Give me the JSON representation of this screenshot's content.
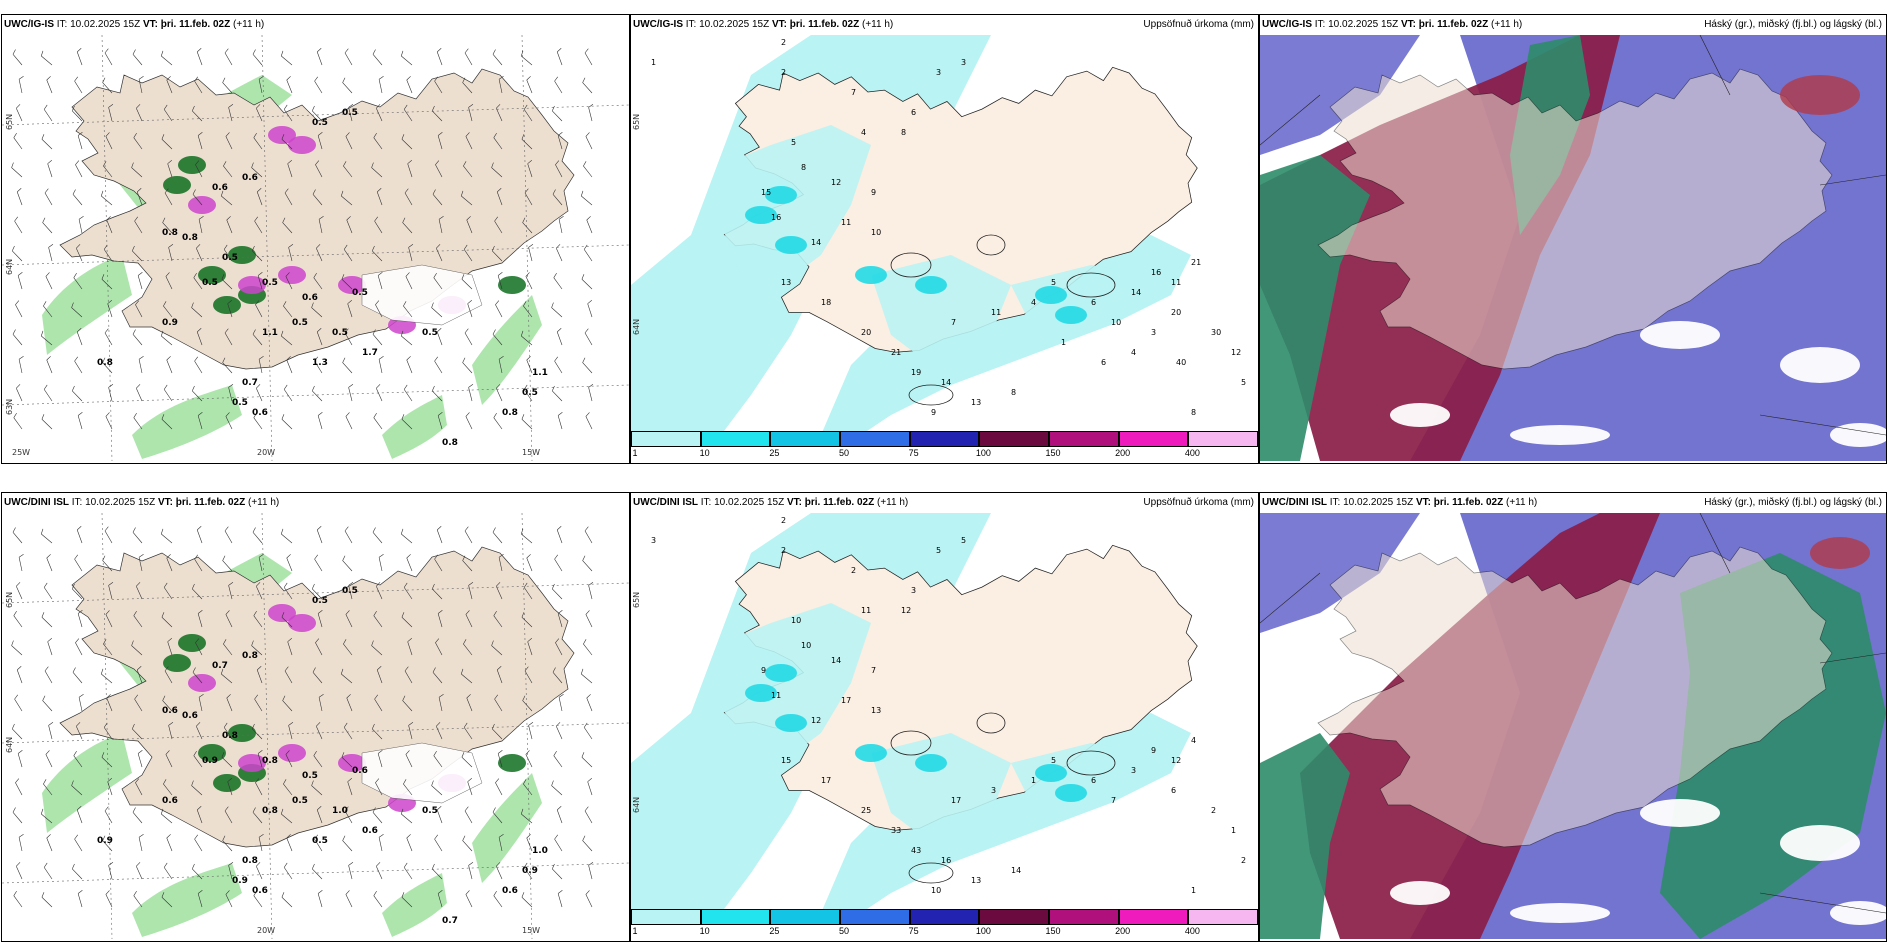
{
  "top": {
    "left": {
      "title_model": "UWC/IG-IS",
      "title_it_label": "IT:",
      "title_it": "10.02.2025 15Z",
      "title_vt_label": "VT:",
      "title_vt": "þri. 11.feb. 02Z",
      "title_lead": "(+11 h)",
      "lat_labels": [
        "65N",
        "64N",
        "63N"
      ],
      "lon_labels": [
        "20W",
        "15W",
        "25W"
      ],
      "values": [
        "0.5",
        "0.5",
        "0.6",
        "0.6",
        "0.8",
        "0.8",
        "0.5",
        "0.5",
        "0.9",
        "0.5",
        "0.6",
        "0.5",
        "0.5",
        "1.1",
        "0.8",
        "0.8",
        "0.7",
        "0.5",
        "0.6",
        "0.5",
        "0.5",
        "1.1",
        "0.8",
        "0.5",
        "1.3",
        "1.7"
      ]
    },
    "middle": {
      "title_model": "UWC/IG-IS",
      "title_it_label": "IT:",
      "title_it": "10.02.2025 15Z",
      "title_vt_label": "VT:",
      "title_vt": "þri. 11.feb. 02Z",
      "title_lead": "(+11 h)",
      "right_title": "Uppsöfnuð úrkoma (mm)",
      "lat_labels": [
        "65N",
        "64N"
      ],
      "values": [
        "1",
        "2",
        "2",
        "3",
        "3",
        "6",
        "7",
        "8",
        "4",
        "5",
        "8",
        "12",
        "9",
        "15",
        "16",
        "14",
        "11",
        "10",
        "13",
        "18",
        "20",
        "21",
        "19",
        "14",
        "13",
        "9",
        "8",
        "7",
        "11",
        "4",
        "5",
        "6",
        "10",
        "14",
        "16",
        "11",
        "21",
        "20",
        "30",
        "12",
        "5",
        "8",
        "1",
        "6",
        "4",
        "3",
        "40"
      ],
      "colorbar_ticks": [
        "1",
        "10",
        "25",
        "50",
        "75",
        "100",
        "150",
        "200",
        "400"
      ]
    },
    "right": {
      "title_model": "UWC/IG-IS",
      "title_it_label": "IT:",
      "title_it": "10.02.2025 15Z",
      "title_vt_label": "VT:",
      "title_vt": "þri. 11.feb. 02Z",
      "title_lead": "(+11 h)",
      "right_title": "Háský (gr.), miðský (fj.bl.) og lágský (bl.)"
    }
  },
  "bottom": {
    "left": {
      "title_model": "UWC/DINI ISL",
      "title_it_label": "IT:",
      "title_it": "10.02.2025 15Z",
      "title_vt_label": "VT:",
      "title_vt": "þri. 11.feb. 02Z",
      "title_lead": "(+11 h)",
      "lat_labels": [
        "65N",
        "64N"
      ],
      "lon_labels": [
        "20W",
        "15W"
      ],
      "values": [
        "0.5",
        "0.5",
        "0.8",
        "0.7",
        "0.6",
        "0.6",
        "0.8",
        "0.9",
        "0.6",
        "0.8",
        "0.5",
        "0.6",
        "0.5",
        "1.0",
        "0.6",
        "0.7",
        "0.8",
        "0.9",
        "0.6",
        "0.5",
        "1.0",
        "0.8",
        "0.9",
        "0.9",
        "0.5",
        "0.6"
      ]
    },
    "middle": {
      "title_model": "UWC/DINI ISL",
      "title_it_label": "IT:",
      "title_it": "10.02.2025 15Z",
      "title_vt_label": "VT:",
      "title_vt": "þri. 11.feb. 02Z",
      "title_lead": "(+11 h)",
      "right_title": "Uppsöfnuð úrkoma (mm)",
      "lat_labels": [
        "65N",
        "64N"
      ],
      "values": [
        "3",
        "2",
        "2",
        "5",
        "5",
        "3",
        "2",
        "12",
        "11",
        "10",
        "10",
        "14",
        "7",
        "9",
        "11",
        "12",
        "17",
        "13",
        "15",
        "17",
        "25",
        "33",
        "43",
        "16",
        "13",
        "10",
        "14",
        "17",
        "3",
        "1",
        "5",
        "6",
        "7",
        "3",
        "9",
        "12",
        "4",
        "6",
        "2",
        "1",
        "2",
        "1"
      ],
      "colorbar_ticks": [
        "1",
        "10",
        "25",
        "50",
        "75",
        "100",
        "150",
        "200",
        "400"
      ]
    },
    "right": {
      "title_model": "UWC/DINI ISL",
      "title_it_label": "IT:",
      "title_it": "10.02.2025 15Z",
      "title_vt_label": "VT:",
      "title_vt": "þri. 11.feb. 02Z",
      "title_lead": "(+11 h)",
      "right_title": "Háský (gr.), miðský (fj.bl.) og lágský (bl.)"
    }
  },
  "colors": {
    "land": "#eddfd0",
    "sea_left": "#ffffff",
    "precip_light": "#b9f3f3",
    "precip_mid": "#22d9e6",
    "green_light": "#9fe09f",
    "green_dark": "#0e6e1e",
    "magenta": "#cc44cc",
    "cloud_high": "#2e8c6a",
    "cloud_mid": "#8a1c47",
    "cloud_low": "#5a5ac8",
    "cbar": [
      "#b9f3f3",
      "#22e4ee",
      "#14c4e4",
      "#2f6de6",
      "#2323b2",
      "#6b0a3e",
      "#b0107b",
      "#ef1bbd",
      "#f6b6f0"
    ]
  }
}
